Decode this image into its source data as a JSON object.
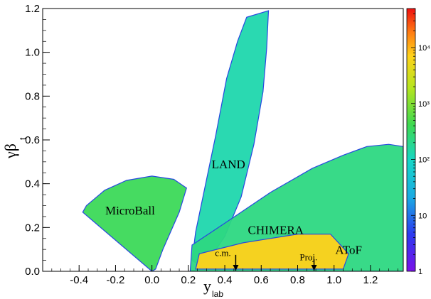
{
  "chart_data": {
    "type": "heatmap",
    "xlabel_main": "y",
    "xlabel_sub": "lab",
    "ylabel_main": "γβ",
    "ylabel_sub": "t",
    "xlim": [
      -0.6,
      1.38
    ],
    "ylim": [
      0.0,
      1.2
    ],
    "x_ticks": [
      -0.4,
      -0.2,
      0.0,
      0.2,
      0.4,
      0.6,
      0.8,
      1.0,
      1.2
    ],
    "x_tick_labels": [
      "-0.4",
      "-0.2",
      "0.0",
      "0.2",
      "0.4",
      "0.6",
      "0.8",
      "1.0",
      "1.2"
    ],
    "y_ticks": [
      0.0,
      0.2,
      0.4,
      0.6,
      0.8,
      1.0,
      1.2
    ],
    "y_tick_labels": [
      "0.0",
      "0.2",
      "0.4",
      "0.6",
      "0.8",
      "1.0",
      "1.2"
    ],
    "colorbar": {
      "scale": "log",
      "range": [
        1,
        50000
      ],
      "tick_labels": [
        {
          "value": 1,
          "label": "1"
        },
        {
          "value": 10,
          "label": "10"
        },
        {
          "value": 100,
          "label": "10²"
        },
        {
          "value": 1000,
          "label": "10³"
        },
        {
          "value": 10000,
          "label": "10⁴"
        }
      ]
    },
    "annotations": [
      {
        "text": "MicroBall",
        "x": -0.12,
        "y": 0.26
      },
      {
        "text": "LAND",
        "x": 0.42,
        "y": 0.47
      },
      {
        "text": "CHIMERA",
        "x": 0.68,
        "y": 0.17
      },
      {
        "text": "AToF",
        "x": 1.08,
        "y": 0.08
      },
      {
        "text": "c.m.",
        "x": 0.39,
        "y": 0.07
      },
      {
        "text": "Proj.",
        "x": 0.86,
        "y": 0.05
      }
    ],
    "arrows": [
      {
        "label": "c.m.",
        "x": 0.46,
        "y_from": 0.075,
        "y_to": 0.0
      },
      {
        "label": "Proj.",
        "x": 0.89,
        "y_from": 0.055,
        "y_to": 0.0
      }
    ],
    "regions": [
      {
        "name": "MicroBall",
        "polygon": [
          [
            0.0,
            0.0
          ],
          [
            -0.38,
            0.27
          ],
          [
            -0.36,
            0.3
          ],
          [
            -0.26,
            0.37
          ],
          [
            -0.14,
            0.415
          ],
          [
            0.0,
            0.435
          ],
          [
            0.12,
            0.42
          ],
          [
            0.19,
            0.38
          ],
          [
            0.15,
            0.27
          ],
          [
            0.06,
            0.1
          ],
          [
            0.02,
            0.01
          ]
        ],
        "level": 0.55
      },
      {
        "name": "LAND",
        "polygon": [
          [
            0.22,
            0.05
          ],
          [
            0.24,
            0.18
          ],
          [
            0.29,
            0.38
          ],
          [
            0.35,
            0.62
          ],
          [
            0.41,
            0.88
          ],
          [
            0.47,
            1.05
          ],
          [
            0.52,
            1.16
          ],
          [
            0.64,
            1.19
          ],
          [
            0.63,
            1.02
          ],
          [
            0.61,
            0.82
          ],
          [
            0.56,
            0.58
          ],
          [
            0.49,
            0.34
          ],
          [
            0.4,
            0.16
          ],
          [
            0.32,
            0.06
          ],
          [
            0.26,
            0.03
          ]
        ],
        "level": 0.45
      },
      {
        "name": "CHIMERA-AToF",
        "polygon": [
          [
            0.21,
            0.0
          ],
          [
            0.22,
            0.12
          ],
          [
            0.4,
            0.22
          ],
          [
            0.65,
            0.36
          ],
          [
            0.88,
            0.47
          ],
          [
            1.05,
            0.53
          ],
          [
            1.18,
            0.57
          ],
          [
            1.3,
            0.58
          ],
          [
            1.38,
            0.57
          ],
          [
            1.38,
            0.0
          ]
        ],
        "level": 0.5
      },
      {
        "name": "CHIMERA-core",
        "polygon": [
          [
            0.24,
            0.01
          ],
          [
            0.26,
            0.08
          ],
          [
            0.5,
            0.13
          ],
          [
            0.8,
            0.17
          ],
          [
            0.98,
            0.17
          ],
          [
            1.08,
            0.08
          ],
          [
            1.05,
            0.01
          ]
        ],
        "level": 0.82
      }
    ]
  }
}
